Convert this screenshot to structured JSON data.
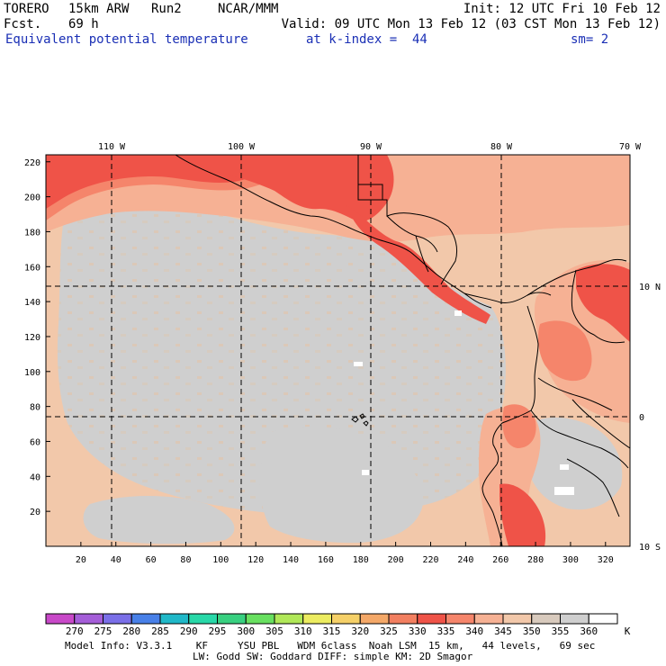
{
  "header": {
    "model": "TORERO",
    "resolution": "15km ARW",
    "run": "Run2",
    "org": "NCAR/MMM",
    "init": "Init: 12 UTC Fri 10 Feb 12",
    "fcst_label": "Fcst.",
    "fcst_value": "69 h",
    "valid": "Valid: 09 UTC Mon 13 Feb 12 (03 CST Mon 13 Feb 12)",
    "field": "Equivalent potential temperature",
    "level": "at k-index =  44",
    "smooth": "sm= 2"
  },
  "map": {
    "top_lon_labels": [
      "110 W",
      "100 W",
      "90 W",
      "80 W",
      "70 W"
    ],
    "right_lat_labels": [
      "10 N",
      "0",
      "10 S"
    ],
    "left_grid_labels": [
      "220",
      "200",
      "180",
      "160",
      "140",
      "120",
      "100",
      "80",
      "60",
      "40",
      "20"
    ],
    "bottom_grid_labels": [
      "20",
      "40",
      "60",
      "80",
      "100",
      "120",
      "140",
      "160",
      "180",
      "200",
      "220",
      "240",
      "260",
      "280",
      "300",
      "320"
    ],
    "colors": {
      "background_345": "#f2c8aa",
      "band_340": "#f6b194",
      "band_335": "#f5856b",
      "band_330": "#ef5348",
      "band_350": "#cfcfcf",
      "band_355": "#ffffff",
      "coast": "#000000"
    }
  },
  "colorbar": {
    "labels": [
      "270",
      "275",
      "280",
      "285",
      "290",
      "295",
      "300",
      "305",
      "310",
      "315",
      "320",
      "325",
      "330",
      "335",
      "340",
      "345",
      "350",
      "355",
      "360"
    ],
    "unit": "K",
    "colors": [
      "#c848c8",
      "#a45dd8",
      "#7a6fe8",
      "#4880e8",
      "#20b8c8",
      "#28d8a8",
      "#38d080",
      "#68e060",
      "#b0e858",
      "#ecec60",
      "#f5d068",
      "#f4a868",
      "#f27f60",
      "#ef5348",
      "#f5856b",
      "#f6b194",
      "#f2c8aa",
      "#d8cabd",
      "#cfcfcf",
      "#ffffff"
    ]
  },
  "footer": {
    "line1": "Model Info: V3.3.1    KF     YSU PBL   WDM 6class  Noah LSM  15 km,   44 levels,   69 sec",
    "line2": "LW: Godd SW: Goddard DIFF: simple KM: 2D Smagor"
  }
}
